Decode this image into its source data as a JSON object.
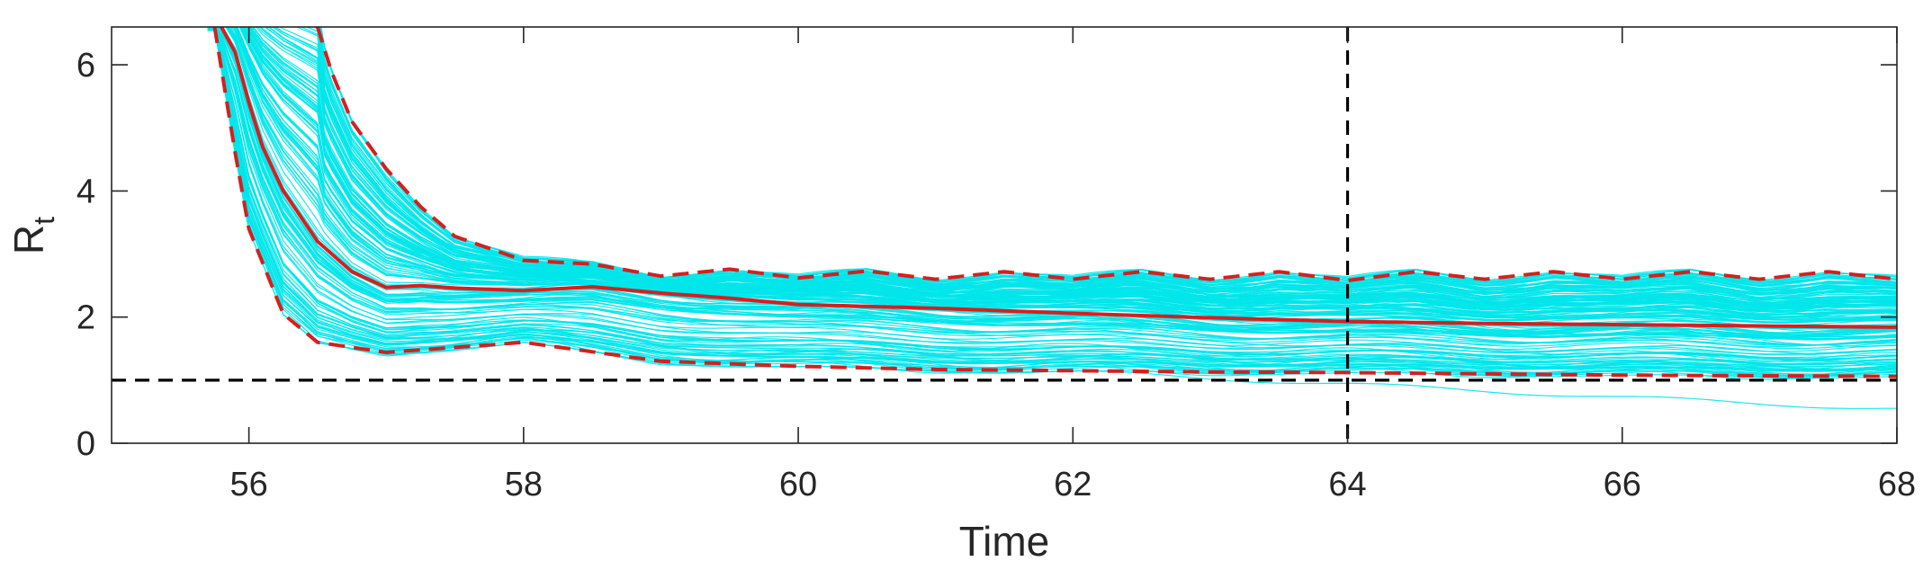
{
  "chart_data": {
    "type": "line",
    "title": "",
    "xlabel": "Time",
    "ylabel": "R",
    "ylabel_subscript": "t",
    "xlim": [
      55,
      68
    ],
    "ylim": [
      0,
      6.6
    ],
    "xticks": [
      56,
      58,
      60,
      62,
      64,
      66,
      68
    ],
    "yticks": [
      0,
      2,
      4,
      6
    ],
    "grid": false,
    "legend": "none",
    "reference_lines": [
      {
        "orientation": "horizontal",
        "value": 1,
        "style": "dashed",
        "color": "#000000"
      },
      {
        "orientation": "vertical",
        "value": 64,
        "style": "dashed",
        "color": "#000000"
      }
    ],
    "colors": {
      "ensemble": "#00e5ea",
      "summary": "#d42020",
      "reference": "#000000"
    },
    "series": [
      {
        "style": "solid",
        "color": "#d42020",
        "x": [
          55.8,
          55.9,
          56.0,
          56.1,
          56.25,
          56.5,
          56.75,
          57.0,
          57.25,
          57.5,
          58.0,
          58.5,
          59.0,
          59.5,
          60.0,
          61.0,
          62.0,
          63.0,
          64.0,
          65.0,
          66.0,
          67.0,
          68.0
        ],
        "y": [
          6.6,
          6.2,
          5.4,
          4.7,
          4.0,
          3.2,
          2.72,
          2.47,
          2.5,
          2.46,
          2.42,
          2.48,
          2.38,
          2.3,
          2.2,
          2.14,
          2.06,
          1.99,
          1.93,
          1.9,
          1.88,
          1.86,
          1.84
        ]
      },
      {
        "style": "dashed",
        "color": "#d42020",
        "x": [
          56.5,
          56.6,
          56.75,
          57.0,
          57.25,
          57.5,
          58.0,
          58.5,
          59.0,
          59.5,
          60.0,
          60.5,
          61.0,
          61.5,
          62.0,
          62.5,
          63.0,
          63.5,
          64.0,
          64.5,
          65.0,
          65.5,
          66.0,
          66.5,
          67.0,
          67.5,
          68.0
        ],
        "y": [
          6.6,
          5.9,
          5.1,
          4.35,
          3.75,
          3.28,
          2.9,
          2.84,
          2.65,
          2.76,
          2.62,
          2.73,
          2.6,
          2.72,
          2.6,
          2.72,
          2.6,
          2.72,
          2.58,
          2.72,
          2.6,
          2.72,
          2.6,
          2.72,
          2.6,
          2.72,
          2.6
        ]
      },
      {
        "style": "dashed",
        "color": "#d42020",
        "x": [
          55.75,
          55.9,
          56.0,
          56.25,
          56.5,
          57.0,
          57.5,
          58.0,
          58.5,
          59.0,
          60.0,
          61.0,
          62.0,
          63.0,
          64.0,
          65.0,
          66.0,
          67.0,
          68.0
        ],
        "y": [
          6.6,
          4.6,
          3.4,
          2.05,
          1.6,
          1.44,
          1.52,
          1.6,
          1.45,
          1.3,
          1.22,
          1.17,
          1.15,
          1.13,
          1.12,
          1.1,
          1.08,
          1.07,
          1.06
        ]
      }
    ]
  }
}
